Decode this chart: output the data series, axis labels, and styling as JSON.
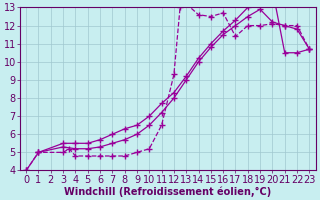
{
  "xlabel": "Windchill (Refroidissement éolien,°C)",
  "bg_color": "#c8eef0",
  "line_color": "#990099",
  "grid_color": "#a0c8d0",
  "axis_color": "#660066",
  "xlim": [
    -0.5,
    23.5
  ],
  "ylim": [
    4,
    13
  ],
  "xticks": [
    0,
    1,
    2,
    3,
    4,
    5,
    6,
    7,
    8,
    9,
    10,
    11,
    12,
    13,
    14,
    15,
    16,
    17,
    18,
    19,
    20,
    21,
    22,
    23
  ],
  "yticks": [
    4,
    5,
    6,
    7,
    8,
    9,
    10,
    11,
    12,
    13
  ],
  "curve1_x": [
    0,
    1,
    3,
    3.5,
    4,
    5,
    6,
    7,
    8,
    9,
    10,
    11,
    12,
    12.5,
    13,
    14,
    15,
    16,
    17,
    18,
    19,
    20,
    21,
    22,
    23
  ],
  "curve1_y": [
    4,
    5,
    5,
    5.2,
    4.8,
    4.8,
    4.8,
    4.8,
    4.8,
    5.0,
    5.2,
    6.5,
    9.3,
    13.0,
    13.2,
    12.6,
    12.5,
    12.7,
    11.4,
    12.0,
    12.0,
    12.1,
    12.0,
    12.0,
    10.7
  ],
  "curve2_x": [
    0,
    1,
    3,
    4,
    5,
    6,
    7,
    8,
    9,
    10,
    11,
    12,
    13,
    14,
    15,
    16,
    17,
    18,
    19,
    20,
    21,
    22,
    23
  ],
  "curve2_y": [
    4,
    5,
    5.5,
    5.5,
    5.5,
    5.7,
    6.0,
    6.3,
    6.5,
    7.0,
    7.7,
    8.3,
    9.2,
    10.2,
    11.0,
    11.7,
    12.3,
    13.0,
    13.8,
    14.0,
    10.5,
    10.5,
    10.7
  ],
  "curve3_x": [
    1,
    3,
    4,
    5,
    6,
    7,
    8,
    9,
    10,
    11,
    12,
    13,
    14,
    15,
    16,
    17,
    18,
    19,
    20,
    21,
    22,
    23
  ],
  "curve3_y": [
    5,
    5.3,
    5.2,
    5.2,
    5.3,
    5.5,
    5.7,
    6.0,
    6.5,
    7.2,
    8.0,
    9.0,
    10.0,
    10.8,
    11.5,
    12.0,
    12.5,
    12.9,
    12.2,
    12.0,
    11.8,
    10.7
  ],
  "font_size": 7,
  "marker": "+",
  "markersize": 4,
  "linewidth": 0.9
}
